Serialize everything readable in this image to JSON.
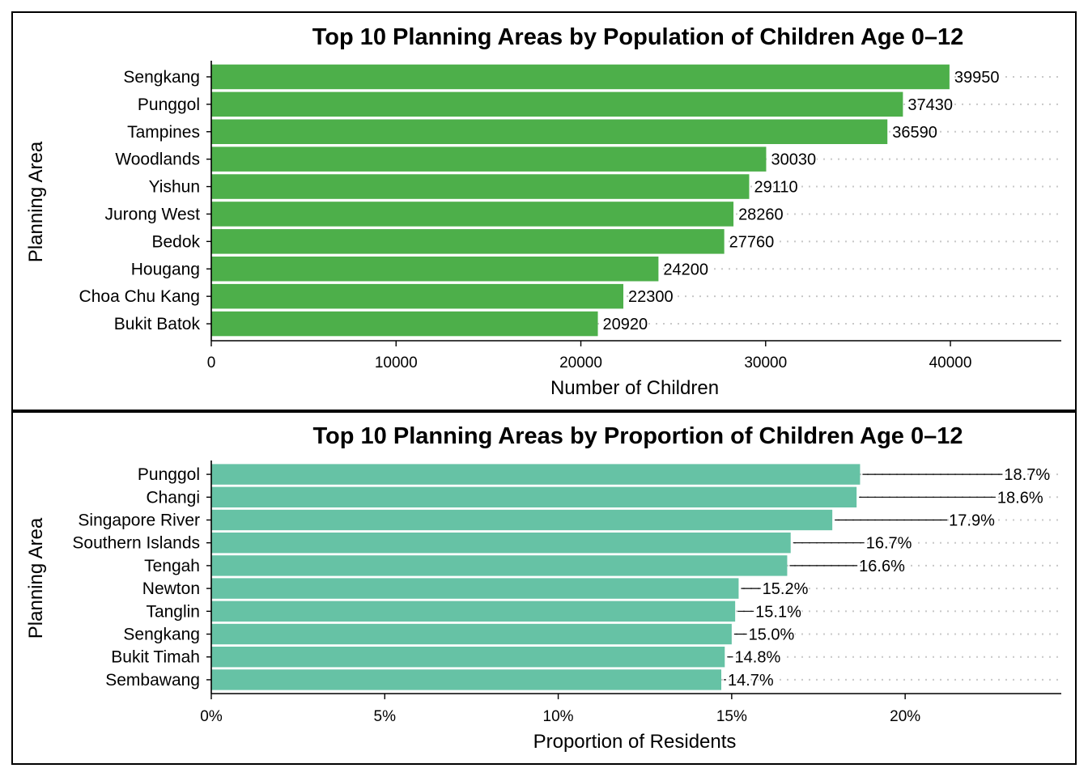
{
  "chart_data": [
    {
      "type": "bar",
      "orientation": "horizontal",
      "title": "Top 10 Planning Areas by Population of Children Age 0–12",
      "xlabel": "Number of Children",
      "ylabel": "Planning Area",
      "categories": [
        "Sengkang",
        "Punggol",
        "Tampines",
        "Woodlands",
        "Yishun",
        "Jurong West",
        "Bedok",
        "Hougang",
        "Choa Chu Kang",
        "Bukit Batok"
      ],
      "values": [
        39950,
        37430,
        36590,
        30030,
        29110,
        28260,
        27760,
        24200,
        22300,
        20920
      ],
      "data_labels": [
        "39950",
        "37430",
        "36590",
        "30030",
        "29110",
        "28260",
        "27760",
        "24200",
        "22300",
        "20920"
      ],
      "xlim": [
        0,
        46000
      ],
      "xticks": [
        0,
        10000,
        20000,
        30000,
        40000
      ],
      "xtick_labels": [
        "0",
        "10000",
        "20000",
        "30000",
        "40000"
      ],
      "bar_color": "#4daf4a",
      "grid": "dotted horizontal per category",
      "legend": "none"
    },
    {
      "type": "bar",
      "orientation": "horizontal",
      "title": "Top 10 Planning Areas by Proportion of Children Age 0–12",
      "xlabel": "Proportion of Residents",
      "ylabel": "Planning Area",
      "categories": [
        "Punggol",
        "Changi",
        "Singapore River",
        "Southern Islands",
        "Tengah",
        "Newton",
        "Tanglin",
        "Sengkang",
        "Bukit Timah",
        "Sembawang"
      ],
      "values": [
        18.7,
        18.6,
        17.9,
        16.7,
        16.6,
        15.2,
        15.1,
        15.0,
        14.8,
        14.7
      ],
      "data_labels": [
        "18.7%",
        "18.6%",
        "17.9%",
        "16.7%",
        "16.6%",
        "15.2%",
        "15.1%",
        "15.0%",
        "14.8%",
        "14.7%"
      ],
      "xlim": [
        0,
        24.5
      ],
      "xticks": [
        0,
        5,
        10,
        15,
        20
      ],
      "xtick_labels": [
        "0%",
        "5%",
        "10%",
        "15%",
        "20%"
      ],
      "bar_color": "#66c2a5",
      "grid": "dotted horizontal per category",
      "legend": "none"
    }
  ]
}
